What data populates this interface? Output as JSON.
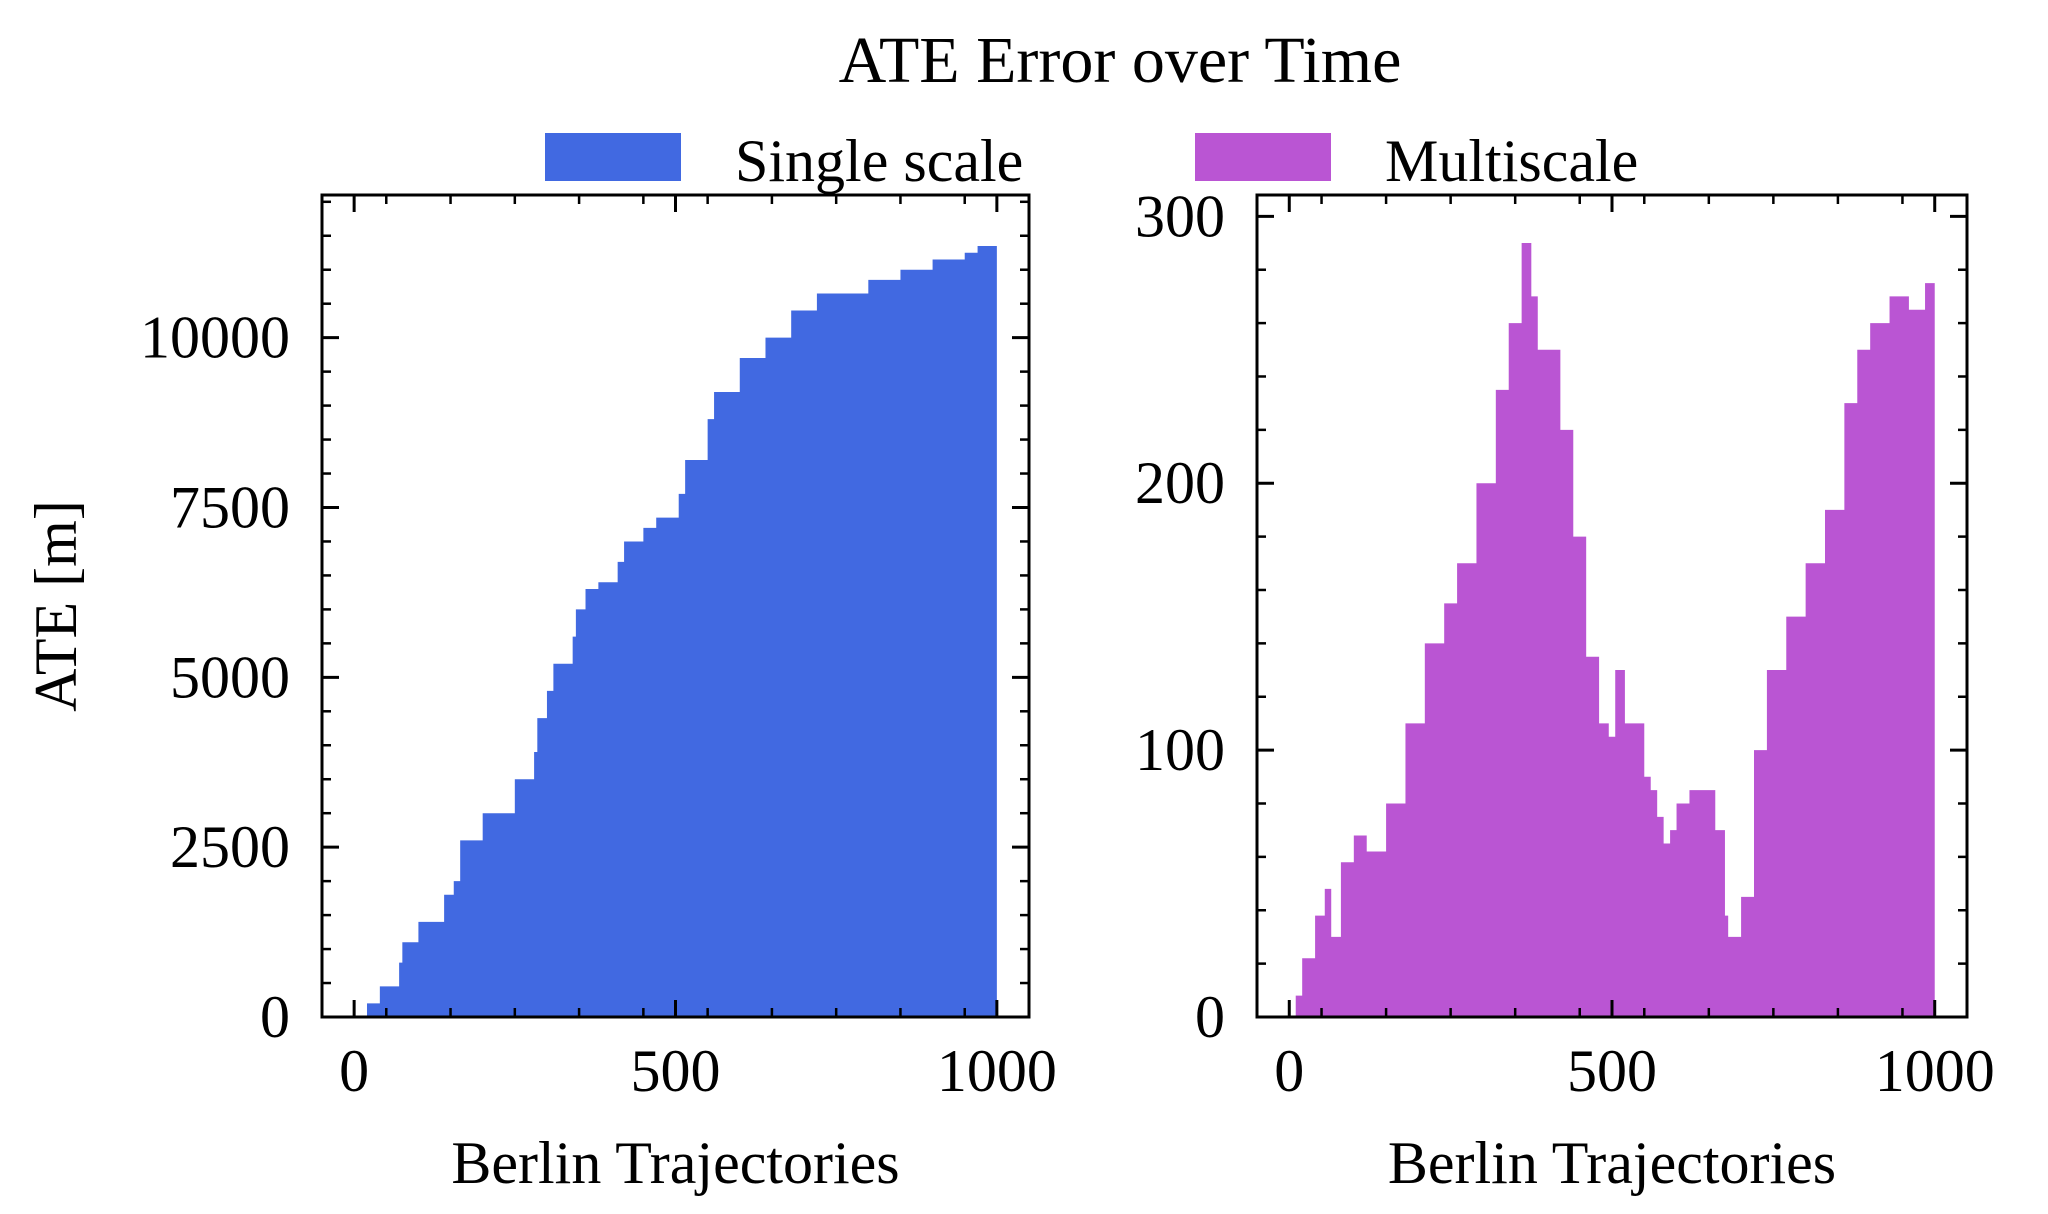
{
  "title": "ATE Error over Time",
  "legend": [
    {
      "label": "Single scale",
      "color": "#4169e1"
    },
    {
      "label": "Multiscale",
      "color": "#ba55d3"
    }
  ],
  "chart_data": [
    {
      "type": "area",
      "series_name": "Single scale",
      "color": "#4169e1",
      "xlabel": "Berlin Trajectories",
      "ylabel": "ATE [m]",
      "xlim": [
        -50,
        1050
      ],
      "ylim": [
        0,
        12100
      ],
      "xticks": [
        0,
        500,
        1000
      ],
      "xtick_labels": [
        "0",
        "500",
        "1000"
      ],
      "yticks": [
        0,
        2500,
        5000,
        7500,
        10000
      ],
      "ytick_labels": [
        "0",
        "2500",
        "5000",
        "7500",
        "10000"
      ],
      "points": [
        [
          10,
          0
        ],
        [
          20,
          200
        ],
        [
          40,
          450
        ],
        [
          70,
          800
        ],
        [
          75,
          1100
        ],
        [
          100,
          1400
        ],
        [
          140,
          1800
        ],
        [
          155,
          2000
        ],
        [
          165,
          2600
        ],
        [
          200,
          3000
        ],
        [
          250,
          3500
        ],
        [
          280,
          3900
        ],
        [
          285,
          4400
        ],
        [
          300,
          4800
        ],
        [
          310,
          5200
        ],
        [
          340,
          5600
        ],
        [
          345,
          6000
        ],
        [
          360,
          6300
        ],
        [
          380,
          6400
        ],
        [
          410,
          6700
        ],
        [
          420,
          7000
        ],
        [
          450,
          7200
        ],
        [
          470,
          7350
        ],
        [
          505,
          7700
        ],
        [
          515,
          8200
        ],
        [
          550,
          8800
        ],
        [
          560,
          9200
        ],
        [
          600,
          9700
        ],
        [
          640,
          10000
        ],
        [
          680,
          10400
        ],
        [
          720,
          10650
        ],
        [
          800,
          10850
        ],
        [
          850,
          11000
        ],
        [
          900,
          11150
        ],
        [
          950,
          11250
        ],
        [
          970,
          11350
        ],
        [
          1000,
          11450
        ]
      ]
    },
    {
      "type": "area",
      "series_name": "Multiscale",
      "color": "#ba55d3",
      "xlabel": "Berlin Trajectories",
      "ylabel": "",
      "xlim": [
        -50,
        1050
      ],
      "ylim": [
        0,
        308
      ],
      "xticks": [
        0,
        500,
        1000
      ],
      "xtick_labels": [
        "0",
        "500",
        "1000"
      ],
      "yticks": [
        0,
        100,
        200,
        300
      ],
      "ytick_labels": [
        "0",
        "100",
        "200",
        "300"
      ],
      "points": [
        [
          10,
          8
        ],
        [
          20,
          22
        ],
        [
          40,
          38
        ],
        [
          55,
          48
        ],
        [
          65,
          30
        ],
        [
          80,
          58
        ],
        [
          100,
          68
        ],
        [
          120,
          62
        ],
        [
          150,
          80
        ],
        [
          180,
          110
        ],
        [
          210,
          140
        ],
        [
          240,
          155
        ],
        [
          260,
          170
        ],
        [
          290,
          200
        ],
        [
          320,
          235
        ],
        [
          340,
          260
        ],
        [
          360,
          290
        ],
        [
          375,
          270
        ],
        [
          385,
          250
        ],
        [
          400,
          250
        ],
        [
          420,
          220
        ],
        [
          440,
          180
        ],
        [
          460,
          135
        ],
        [
          480,
          110
        ],
        [
          495,
          105
        ],
        [
          505,
          130
        ],
        [
          520,
          110
        ],
        [
          550,
          90
        ],
        [
          560,
          85
        ],
        [
          570,
          75
        ],
        [
          580,
          65
        ],
        [
          590,
          70
        ],
        [
          600,
          80
        ],
        [
          620,
          85
        ],
        [
          640,
          85
        ],
        [
          660,
          70
        ],
        [
          675,
          38
        ],
        [
          680,
          30
        ],
        [
          700,
          45
        ],
        [
          720,
          100
        ],
        [
          740,
          130
        ],
        [
          770,
          150
        ],
        [
          800,
          170
        ],
        [
          830,
          190
        ],
        [
          860,
          230
        ],
        [
          880,
          250
        ],
        [
          900,
          260
        ],
        [
          930,
          270
        ],
        [
          960,
          265
        ],
        [
          985,
          275
        ],
        [
          1000,
          285
        ]
      ]
    }
  ]
}
